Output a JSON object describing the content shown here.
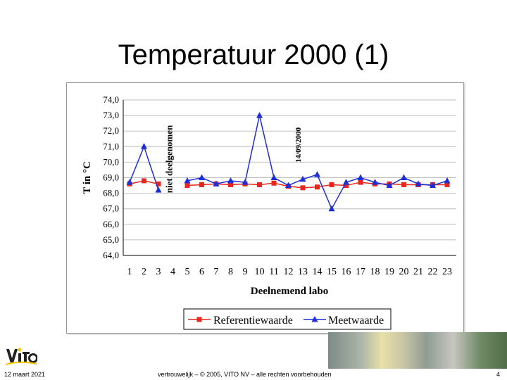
{
  "slide": {
    "title": "Temperatuur 2000 (1)",
    "date": "12 maart 2021",
    "footer_text": "vertrouwelijk – © 2005, VITO NV – alle rechten voorbehouden",
    "page_number": "4",
    "logo_text": "vito"
  },
  "chart_data": {
    "type": "line",
    "title": "",
    "xlabel": "Deelnemend labo",
    "ylabel": "T in °C",
    "ylim": [
      64.0,
      74.0
    ],
    "yticks": [
      "64,0",
      "65,0",
      "66,0",
      "67,0",
      "68,0",
      "69,0",
      "70,0",
      "71,0",
      "72,0",
      "73,0",
      "74,0"
    ],
    "categories": [
      "1",
      "2",
      "3",
      "4",
      "5",
      "6",
      "7",
      "8",
      "9",
      "10",
      "11",
      "12",
      "13",
      "14",
      "15",
      "16",
      "17",
      "18",
      "19",
      "20",
      "21",
      "22",
      "23"
    ],
    "series": [
      {
        "name": "Referentiewaarde",
        "color": "#e8261c",
        "marker": "square",
        "values": [
          68.6,
          68.8,
          68.6,
          null,
          68.5,
          68.55,
          68.6,
          68.55,
          68.6,
          68.55,
          68.65,
          68.45,
          68.35,
          68.4,
          68.55,
          68.5,
          68.7,
          68.6,
          68.6,
          68.55,
          68.55,
          68.55,
          68.55
        ]
      },
      {
        "name": "Meetwaarde",
        "color": "#1c2fd6",
        "marker": "triangle",
        "values": [
          68.7,
          71.0,
          68.2,
          null,
          68.8,
          69.0,
          68.6,
          68.8,
          68.7,
          73.0,
          69.0,
          68.5,
          68.9,
          69.2,
          67.0,
          68.7,
          69.0,
          68.7,
          68.5,
          69.0,
          68.6,
          68.5,
          68.8
        ]
      }
    ],
    "annotations": [
      {
        "text": "niet deelgenomen",
        "at_category": "4"
      },
      {
        "text": "14/09/2000",
        "at_category": "13"
      }
    ],
    "legend_position": "bottom"
  }
}
